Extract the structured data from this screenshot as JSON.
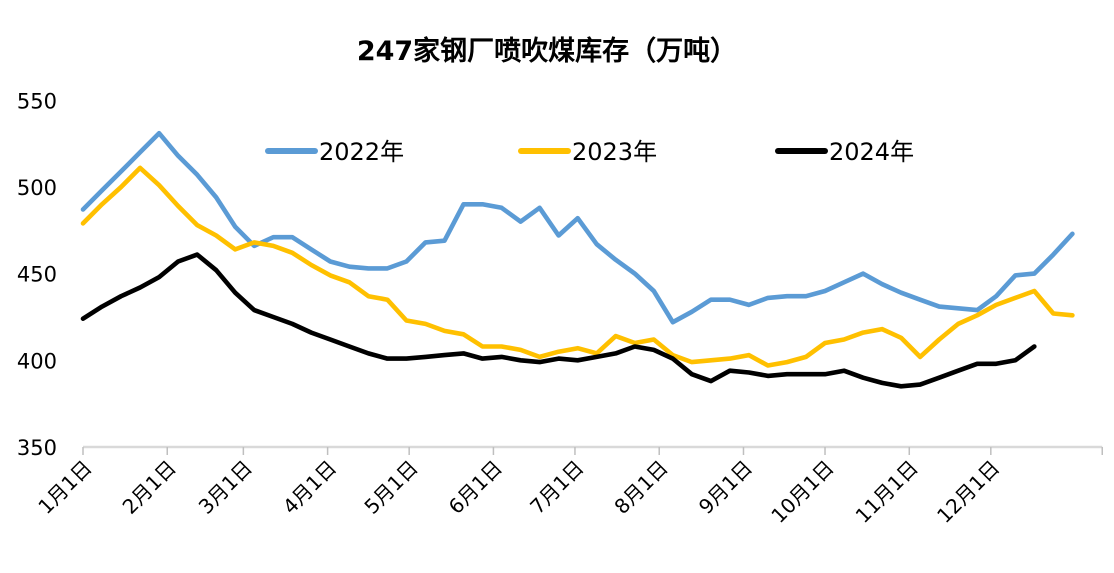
{
  "title": "247家钢厂喷吹煤库存（万吨）",
  "colors": {
    "series_2022": "#5B9BD5",
    "series_2023": "#FFC000",
    "series_2024": "#000000",
    "axis_line": "#D9D9D9",
    "tick_mark": "#BFBFBF",
    "text": "#000000",
    "background": "#FFFFFF"
  },
  "legend": {
    "items": [
      {
        "label": "2022年",
        "color": "#5B9BD5"
      },
      {
        "label": "2023年",
        "color": "#FFC000"
      },
      {
        "label": "2024年",
        "color": "#000000"
      }
    ]
  },
  "chart_data": {
    "type": "line",
    "title": "247家钢厂喷吹煤库存（万吨）",
    "xlabel": "",
    "ylabel": "",
    "ylim": [
      350,
      550
    ],
    "y_ticks": [
      350,
      400,
      450,
      500,
      550
    ],
    "grid": false,
    "legend_position": "top",
    "x_unit": "weekly points starting Jan 1, one value per week",
    "x_tick_labels": [
      "1月1日",
      "2月1日",
      "3月1日",
      "4月1日",
      "5月1日",
      "6月1日",
      "7月1日",
      "8月1日",
      "9月1日",
      "10月1日",
      "11月1日",
      "12月1日"
    ],
    "month_tick_day_offsets": [
      0,
      31,
      59,
      90,
      120,
      151,
      181,
      212,
      243,
      273,
      304,
      334
    ],
    "axis_end_day": 375,
    "series": [
      {
        "name": "2022年",
        "color": "#5B9BD5",
        "values": [
          487,
          498,
          509,
          520,
          531,
          518,
          507,
          494,
          477,
          466,
          471,
          471,
          464,
          457,
          454,
          453,
          453,
          457,
          468,
          469,
          490,
          490,
          488,
          480,
          488,
          472,
          482,
          467,
          458,
          450,
          440,
          422,
          428,
          435,
          435,
          432,
          436,
          437,
          437,
          440,
          445,
          450,
          444,
          439,
          435,
          431,
          430,
          429,
          437,
          449,
          450,
          461,
          473
        ]
      },
      {
        "name": "2023年",
        "color": "#FFC000",
        "values": [
          479,
          490,
          500,
          511,
          501,
          489,
          478,
          472,
          464,
          468,
          466,
          462,
          455,
          449,
          445,
          437,
          435,
          423,
          421,
          417,
          415,
          408,
          408,
          406,
          402,
          405,
          407,
          404,
          414,
          410,
          412,
          403,
          399,
          400,
          401,
          403,
          397,
          399,
          402,
          410,
          412,
          416,
          418,
          413,
          402,
          412,
          421,
          426,
          432,
          436,
          440,
          427,
          426
        ]
      },
      {
        "name": "2024年",
        "color": "#000000",
        "values": [
          424,
          431,
          437,
          442,
          448,
          457,
          461,
          452,
          439,
          429,
          425,
          421,
          416,
          412,
          408,
          404,
          401,
          401,
          402,
          403,
          404,
          401,
          402,
          400,
          399,
          401,
          400,
          402,
          404,
          408,
          406,
          401,
          392,
          388,
          394,
          393,
          391,
          392,
          392,
          392,
          394,
          390,
          387,
          385,
          386,
          390,
          394,
          398,
          398,
          400,
          408
        ]
      }
    ]
  }
}
